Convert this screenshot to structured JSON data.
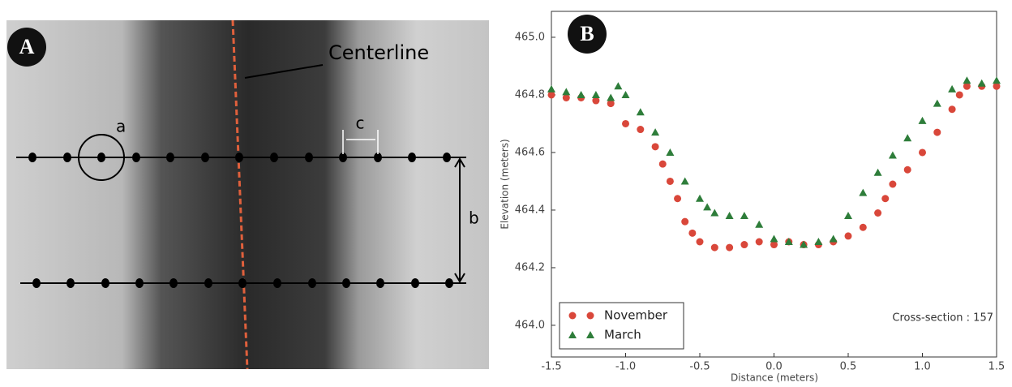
{
  "panel_a": {
    "label": "A",
    "centerline": "Centerline",
    "a": "a",
    "b": "b",
    "c": "c"
  },
  "chart_data": {
    "type": "scatter",
    "panel_label": "B",
    "xlabel": "Distance (meters)",
    "ylabel": "Elevation (meters)",
    "annotation": "Cross-section : 157",
    "xlim": [
      -1.5,
      1.5
    ],
    "ylim": [
      463.89,
      465.09
    ],
    "xticks": [
      -1.5,
      {
        "value": -1,
        "label": "-1.0"
      },
      -0.5,
      {
        "value": 0,
        "label": "0.0"
      },
      0.5,
      {
        "value": 1,
        "label": "1.0"
      },
      1.5
    ],
    "yticks": [
      {
        "value": 464,
        "label": "464.0"
      },
      464.2,
      464.4,
      464.6,
      464.8,
      {
        "value": 465,
        "label": "465.0"
      }
    ],
    "legend": "lower left",
    "series": [
      {
        "name": "November",
        "color": "#d9473a",
        "marker": "circle",
        "x": [
          -1.5,
          -1.4,
          -1.3,
          -1.2,
          -1.1,
          -1.0,
          -0.9,
          -0.8,
          -0.75,
          -0.7,
          -0.65,
          -0.6,
          -0.55,
          -0.5,
          -0.4,
          -0.3,
          -0.2,
          -0.1,
          0.0,
          0.1,
          0.2,
          0.3,
          0.4,
          0.5,
          0.6,
          0.7,
          0.75,
          0.8,
          0.9,
          1.0,
          1.1,
          1.2,
          1.25,
          1.3,
          1.4,
          1.5
        ],
        "values": [
          464.8,
          464.79,
          464.79,
          464.78,
          464.77,
          464.7,
          464.68,
          464.62,
          464.56,
          464.5,
          464.44,
          464.36,
          464.32,
          464.29,
          464.27,
          464.27,
          464.28,
          464.29,
          464.28,
          464.29,
          464.28,
          464.28,
          464.29,
          464.31,
          464.34,
          464.39,
          464.44,
          464.49,
          464.54,
          464.6,
          464.67,
          464.75,
          464.8,
          464.83,
          464.83,
          464.83
        ]
      },
      {
        "name": "March",
        "color": "#2e7d3a",
        "marker": "triangle",
        "x": [
          -1.5,
          -1.4,
          -1.3,
          -1.2,
          -1.1,
          -1.05,
          -1.0,
          -0.9,
          -0.8,
          -0.7,
          -0.6,
          -0.5,
          -0.45,
          -0.4,
          -0.3,
          -0.2,
          -0.1,
          0.0,
          0.1,
          0.2,
          0.3,
          0.4,
          0.5,
          0.6,
          0.7,
          0.8,
          0.9,
          1.0,
          1.1,
          1.2,
          1.3,
          1.4,
          1.5
        ],
        "values": [
          464.82,
          464.81,
          464.8,
          464.8,
          464.79,
          464.83,
          464.8,
          464.74,
          464.67,
          464.6,
          464.5,
          464.44,
          464.41,
          464.39,
          464.38,
          464.38,
          464.35,
          464.3,
          464.29,
          464.28,
          464.29,
          464.3,
          464.38,
          464.46,
          464.53,
          464.59,
          464.65,
          464.71,
          464.77,
          464.82,
          464.85,
          464.84,
          464.85
        ]
      }
    ]
  }
}
